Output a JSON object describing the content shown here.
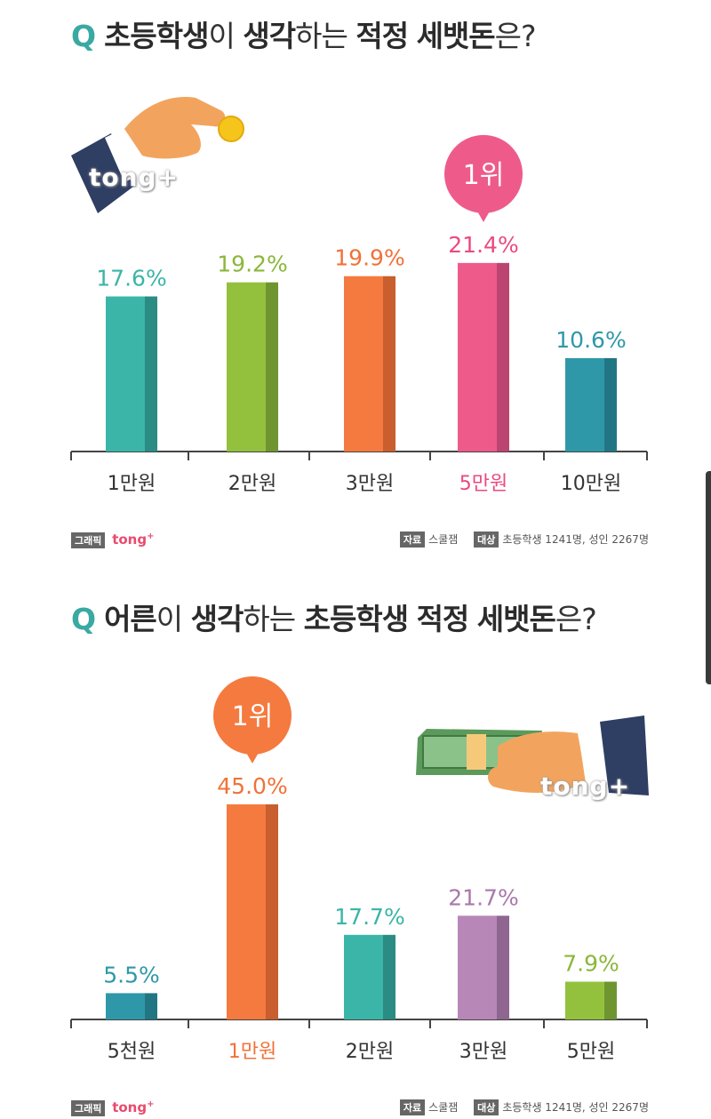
{
  "chart_data": [
    {
      "type": "bar",
      "title_parts": [
        "Q",
        "초등학생",
        "이 ",
        "생각",
        "하는 ",
        "적정",
        " ",
        "세뱃돈",
        "은?"
      ],
      "categories": [
        "1만원",
        "2만원",
        "3만원",
        "5만원",
        "10만원"
      ],
      "values": [
        17.6,
        19.2,
        19.9,
        21.4,
        10.6
      ],
      "labels": [
        "17.6%",
        "19.2%",
        "19.9%",
        "21.4%",
        "10.6%"
      ],
      "colors": [
        "#3bb5a8",
        "#93c13e",
        "#f57a3f",
        "#ee5b8b",
        "#2f98a8"
      ],
      "dark_colors": [
        "#2a8c82",
        "#6f9530",
        "#c95e2e",
        "#bb4570",
        "#227684"
      ],
      "label_colors": [
        "#3bb5a8",
        "#8bb73a",
        "#f07238",
        "#e94b7f",
        "#2f98a8"
      ],
      "tick_colors": [
        "#333333",
        "#333333",
        "#333333",
        "#e94b7f",
        "#333333"
      ],
      "rank_index": 3,
      "rank_label": "1위",
      "rank_color": "#ee5b8b",
      "ylim": [
        0,
        23
      ],
      "footer": {
        "graphic_tag": "그래픽",
        "brand": "tong",
        "brand_plus": "+",
        "source_tag": "자료",
        "source": "스쿨잼",
        "target_tag": "대상",
        "target": "초등학생 1241명, 성인 2267명"
      },
      "watermark": "tong+"
    },
    {
      "type": "bar",
      "title_parts": [
        "Q",
        "어른",
        "이 ",
        "생각",
        "하는 ",
        "초등학생",
        " ",
        "적정",
        " ",
        "세뱃돈",
        "은?"
      ],
      "categories": [
        "5천원",
        "1만원",
        "2만원",
        "3만원",
        "5만원"
      ],
      "values": [
        5.5,
        45.0,
        17.7,
        21.7,
        7.9
      ],
      "labels": [
        "5.5%",
        "45.0%",
        "17.7%",
        "21.7%",
        "7.9%"
      ],
      "colors": [
        "#2f98a8",
        "#f57a3f",
        "#3bb5a8",
        "#b787b8",
        "#93c13e"
      ],
      "dark_colors": [
        "#227684",
        "#c95e2e",
        "#2a8c82",
        "#8e6690",
        "#6f9530"
      ],
      "label_colors": [
        "#2f98a8",
        "#f07238",
        "#3bb5a8",
        "#a978ab",
        "#8bb73a"
      ],
      "tick_colors": [
        "#333333",
        "#f07238",
        "#333333",
        "#333333",
        "#333333"
      ],
      "rank_index": 1,
      "rank_label": "1위",
      "rank_color": "#f57a3f",
      "ylim": [
        0,
        45
      ],
      "footer": {
        "graphic_tag": "그래픽",
        "brand": "tong",
        "brand_plus": "+",
        "source_tag": "자료",
        "source": "스쿨잼",
        "target_tag": "대상",
        "target": "초등학생 1241명, 성인 2267명"
      },
      "watermark": "tong+"
    }
  ]
}
